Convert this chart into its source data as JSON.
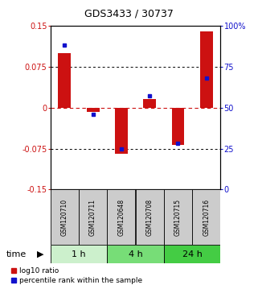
{
  "title": "GDS3433 / 30737",
  "samples": [
    "GSM120710",
    "GSM120711",
    "GSM120648",
    "GSM120708",
    "GSM120715",
    "GSM120716"
  ],
  "log10_ratio": [
    0.1,
    -0.008,
    -0.085,
    0.015,
    -0.068,
    0.14
  ],
  "percentile_rank": [
    88,
    46,
    25,
    57,
    28,
    68
  ],
  "groups": [
    {
      "label": "1 h",
      "cols": [
        0,
        1
      ],
      "color": "#ccf0cc"
    },
    {
      "label": "4 h",
      "cols": [
        2,
        3
      ],
      "color": "#77dd77"
    },
    {
      "label": "24 h",
      "cols": [
        4,
        5
      ],
      "color": "#44cc44"
    }
  ],
  "ylim_left": [
    -0.15,
    0.15
  ],
  "ylim_right": [
    0,
    100
  ],
  "yticks_left": [
    -0.15,
    -0.075,
    0,
    0.075,
    0.15
  ],
  "ytick_labels_left": [
    "-0.15",
    "-0.075",
    "0",
    "0.075",
    "0.15"
  ],
  "yticks_right": [
    0,
    25,
    50,
    75,
    100
  ],
  "ytick_labels_right": [
    "0",
    "25",
    "50",
    "75",
    "100%"
  ],
  "bar_color": "#cc1111",
  "dot_color": "#1111cc",
  "bg_color": "#ffffff",
  "plot_bg": "#ffffff",
  "grid_color": "#000000",
  "zero_color": "#cc1111",
  "time_label": "time",
  "legend_red": "log10 ratio",
  "legend_blue": "percentile rank within the sample",
  "title_fontsize": 9,
  "axis_fontsize": 7,
  "sample_fontsize": 5.5,
  "group_fontsize": 8,
  "legend_fontsize": 6.5
}
